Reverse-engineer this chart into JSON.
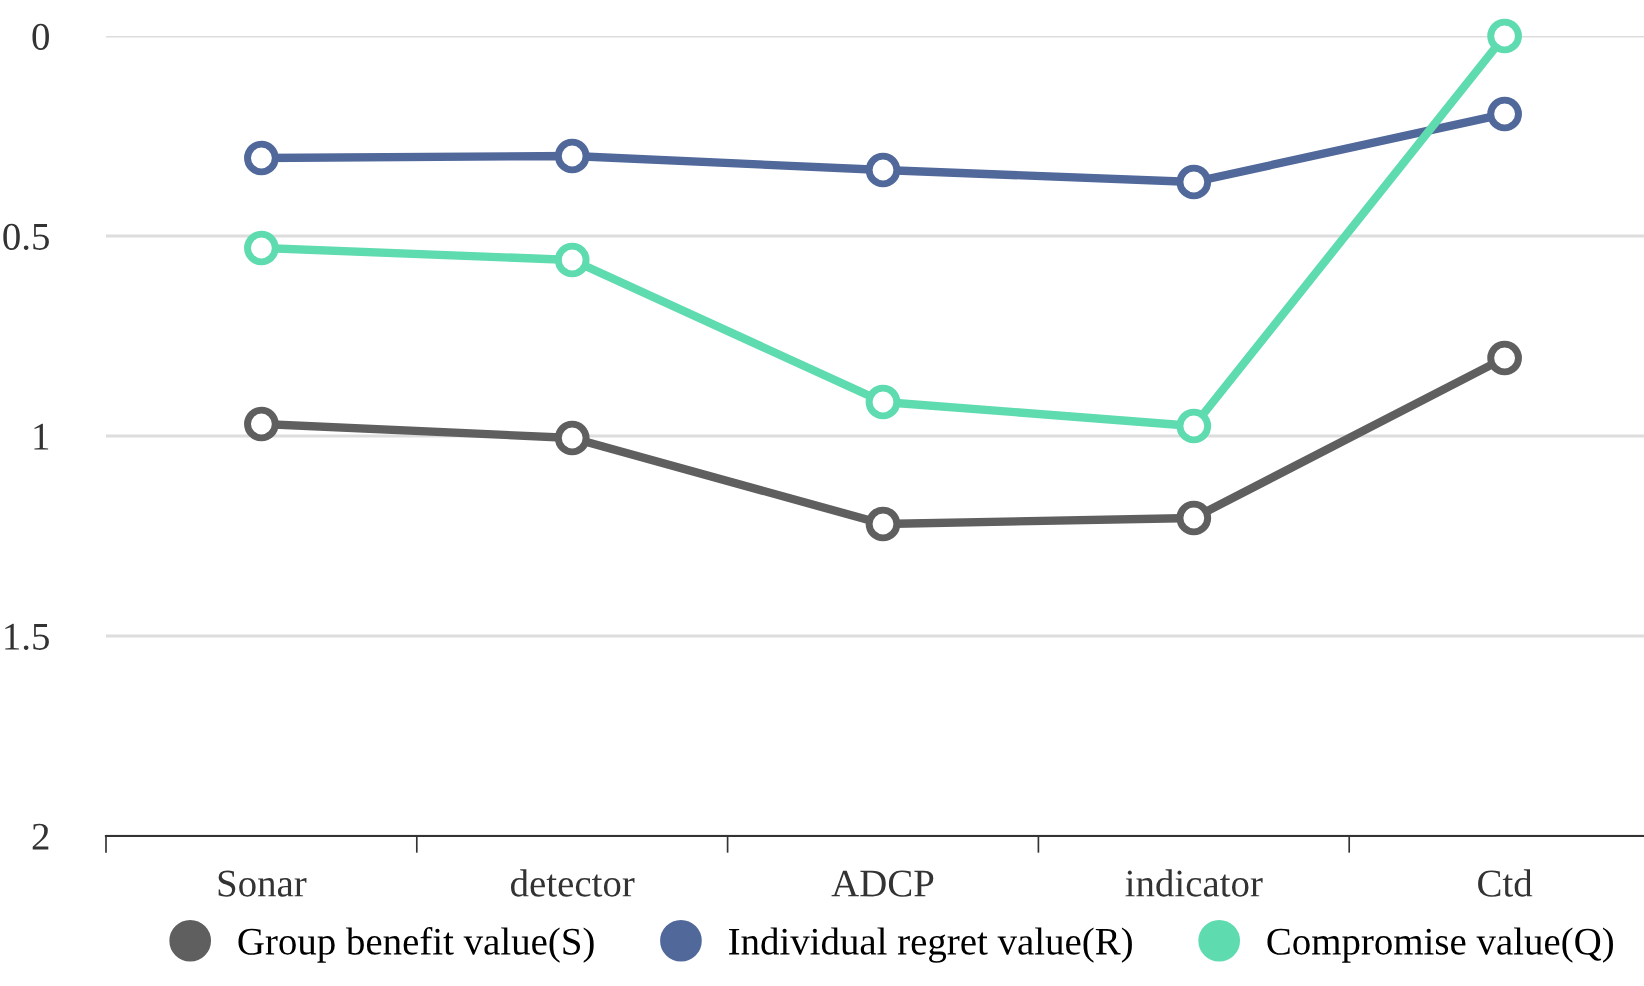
{
  "chart_data": {
    "type": "line",
    "categories": [
      "Sonar",
      "detector",
      "ADCP",
      "indicator",
      "Ctd"
    ],
    "series": [
      {
        "name": "Group benefit value(S)",
        "color": "#5f5f5f",
        "values": [
          0.97,
          1.005,
          1.22,
          1.205,
          0.805
        ]
      },
      {
        "name": "Individual regret value(R)",
        "color": "#51689b",
        "values": [
          0.305,
          0.3,
          0.335,
          0.365,
          0.195
        ]
      },
      {
        "name": "Compromise value(Q)",
        "color": "#5fdbb0",
        "values": [
          0.53,
          0.56,
          0.915,
          0.975,
          0
        ]
      }
    ],
    "ylim": [
      2,
      0
    ],
    "yticks": [
      0,
      0.5,
      1,
      1.5,
      2
    ],
    "grid": "y",
    "legend": "bottom",
    "marker": "circle",
    "line_style": "solid"
  }
}
